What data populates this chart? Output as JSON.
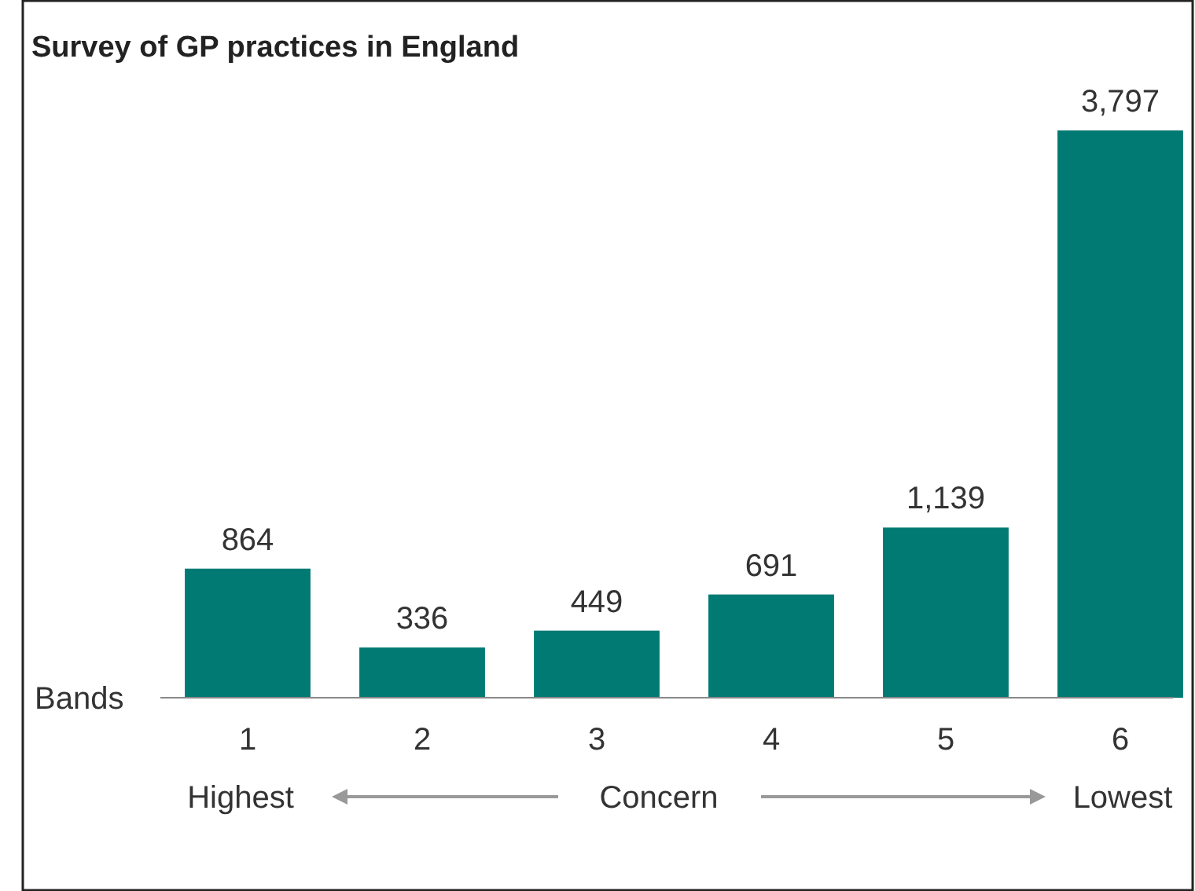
{
  "chart_data": {
    "type": "bar",
    "title": "Survey of GP practices in England",
    "xlabel": "Bands",
    "categories": [
      "1",
      "2",
      "3",
      "4",
      "5",
      "6"
    ],
    "values": [
      864,
      336,
      449,
      691,
      1139,
      3797
    ],
    "value_labels": [
      "864",
      "336",
      "449",
      "691",
      "1,139",
      "3,797"
    ],
    "color": "#007a73",
    "annotations": [
      "Highest",
      "Concern",
      "Lowest"
    ]
  }
}
